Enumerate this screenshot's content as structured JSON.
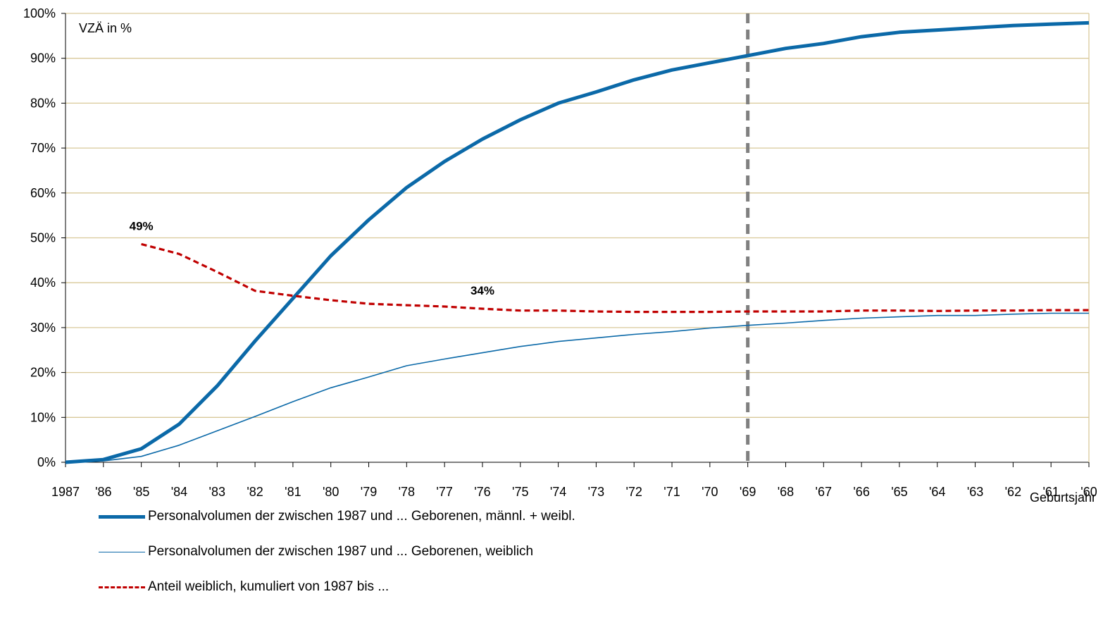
{
  "chart_data": {
    "type": "line",
    "unit_label": "VZÄ in %",
    "xlabel": "Geburtsjahr",
    "x": [
      "1987",
      "'86",
      "'85",
      "'84",
      "'83",
      "'82",
      "'81",
      "'80",
      "'79",
      "'78",
      "'77",
      "'76",
      "'75",
      "'74",
      "'73",
      "'72",
      "'71",
      "'70",
      "'69",
      "'68",
      "'67",
      "'66",
      "'65",
      "'64",
      "'63",
      "'62",
      "'61",
      "'60"
    ],
    "ylim": [
      0,
      100
    ],
    "yticks": [
      "0%",
      "10%",
      "20%",
      "30%",
      "40%",
      "50%",
      "60%",
      "70%",
      "80%",
      "90%",
      "100%"
    ],
    "grid": true,
    "reference_line_at": "'69",
    "series": [
      {
        "name": "Personalvolumen der zwischen 1987 und ... Geborenen, männl. + weibl.",
        "values": [
          0,
          0.6,
          3,
          8.5,
          17,
          27,
          36.5,
          46,
          54,
          61.2,
          67,
          72,
          76.3,
          80,
          82.5,
          85.2,
          87.4,
          89,
          90.6,
          92.2,
          93.3,
          94.8,
          95.8,
          96.3,
          96.8,
          97.3,
          97.6,
          97.9
        ],
        "color": "#0b69a8",
        "style": "thick"
      },
      {
        "name": "Personalvolumen der zwischen 1987 und ... Geborenen, weiblich",
        "values": [
          0,
          0.3,
          1.3,
          3.8,
          7,
          10.2,
          13.5,
          16.6,
          19,
          21.5,
          23,
          24.4,
          25.8,
          26.9,
          27.7,
          28.5,
          29.1,
          29.9,
          30.5,
          31,
          31.6,
          32.1,
          32.4,
          32.7,
          32.7,
          33,
          33.2,
          33.2
        ],
        "color": "#0b69a8",
        "style": "thin"
      },
      {
        "name": "Anteil weiblich, kumuliert von 1987  bis ...",
        "values": [
          null,
          null,
          48.6,
          46.4,
          42.4,
          38.2,
          37.1,
          36.1,
          35.3,
          35,
          34.7,
          34.2,
          33.8,
          33.8,
          33.6,
          33.5,
          33.5,
          33.5,
          33.6,
          33.6,
          33.6,
          33.8,
          33.8,
          33.7,
          33.8,
          33.8,
          33.9,
          33.9
        ],
        "color": "#c00000",
        "style": "dashed"
      }
    ],
    "annotations": [
      {
        "text": "49%",
        "x": "'85",
        "y": 48.6
      },
      {
        "text": "34%",
        "x": "'76",
        "y": 34.2
      }
    ]
  },
  "legend": [
    {
      "label": "Personalvolumen der zwischen 1987 und ... Geborenen, männl. + weibl."
    },
    {
      "label": "Personalvolumen der zwischen 1987 und ... Geborenen, weiblich"
    },
    {
      "label": "Anteil weiblich, kumuliert von 1987  bis ..."
    }
  ]
}
